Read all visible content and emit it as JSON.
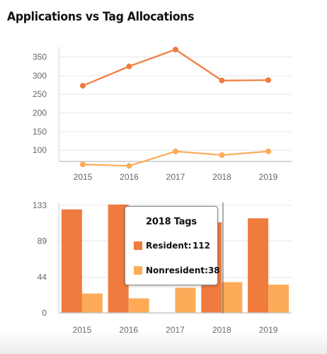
{
  "title": "Applications vs Tag Allocations",
  "chart_data": [
    {
      "type": "line",
      "x": [
        "2015",
        "2016",
        "2017",
        "2018",
        "2019"
      ],
      "ylim": [
        70,
        370
      ],
      "yticks": [
        100,
        150,
        200,
        250,
        300,
        350
      ],
      "grid": true,
      "series": [
        {
          "values": [
            273,
            325,
            370,
            287,
            288
          ],
          "color": "#f07b3f"
        },
        {
          "values": [
            62,
            58,
            97,
            87,
            97
          ],
          "color": "#fdab58"
        }
      ]
    },
    {
      "type": "bar",
      "categories": [
        "2015",
        "2016",
        "2017",
        "2018",
        "2019"
      ],
      "ylim": [
        0,
        133
      ],
      "yticks": [
        0,
        44,
        89,
        133
      ],
      "grid": true,
      "series": [
        {
          "name": "Resident",
          "values": [
            128,
            134,
            0,
            112,
            117
          ],
          "color": "#f07b3f"
        },
        {
          "name": "Nonresident",
          "values": [
            24,
            18,
            31,
            38,
            35
          ],
          "color": "#fdab58"
        }
      ]
    }
  ],
  "tooltip": {
    "title": "2018 Tags",
    "rows": [
      {
        "label": "Resident:",
        "value": "112",
        "color": "#f07b3f"
      },
      {
        "label": "Nonresident:",
        "value": "38",
        "color": "#fdab58"
      }
    ]
  }
}
